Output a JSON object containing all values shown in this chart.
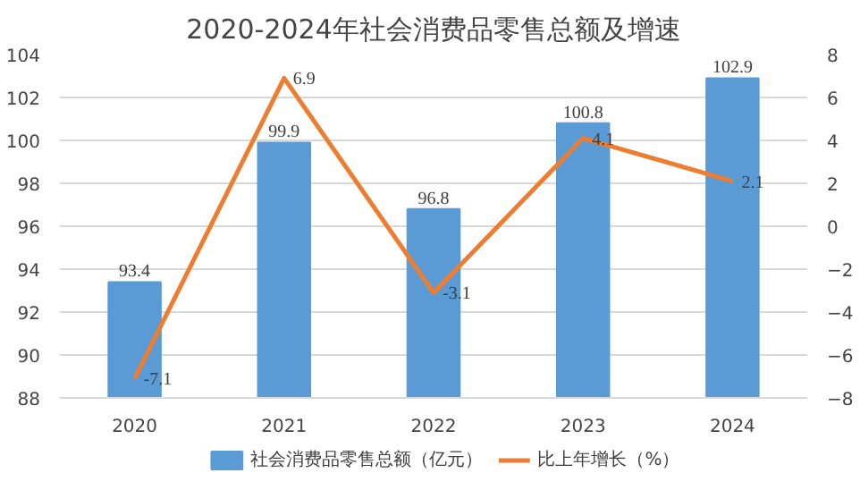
{
  "chart_data": {
    "type": "bar",
    "title": "2020-2024年社会消费品零售总额及增速",
    "categories": [
      "2020",
      "2021",
      "2022",
      "2023",
      "2024"
    ],
    "series": [
      {
        "name": "社会消费品零售总额（亿元）",
        "color": "#5b9bd5",
        "values": [
          93.4,
          99.9,
          96.8,
          100.8,
          102.9
        ]
      },
      {
        "name": "比上年增长（%）",
        "type": "line",
        "axis": "y2",
        "color": "#ed7d31",
        "values": [
          -7.1,
          6.9,
          -3.1,
          4.1,
          2.1
        ]
      }
    ],
    "ylim": [
      88,
      104
    ],
    "yticks": [
      88,
      90,
      92,
      94,
      96,
      98,
      100,
      102,
      104
    ],
    "y2lim": [
      -8,
      8
    ],
    "y2ticks": [
      -8,
      -6,
      -4,
      -2,
      0,
      2,
      4,
      6,
      8
    ],
    "grid": "y",
    "legend": "bottom",
    "data_labels": true
  }
}
